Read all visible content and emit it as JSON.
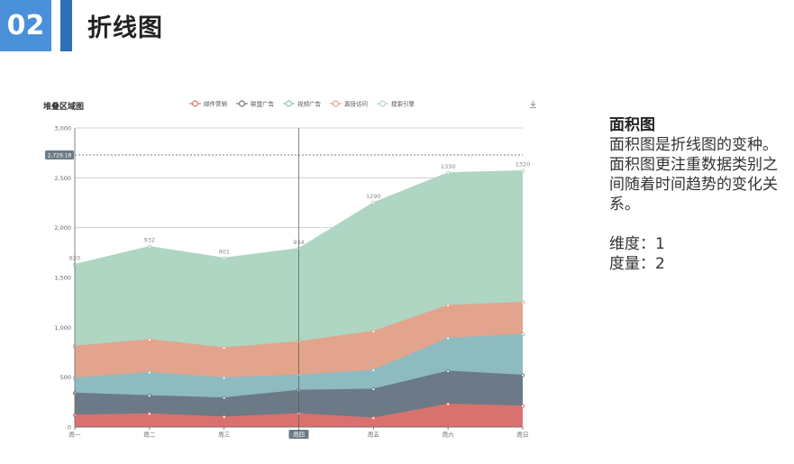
{
  "slide": {
    "number": "02",
    "title": "折线图"
  },
  "side_panel": {
    "heading": "面积图",
    "body": "面积图是折线图的变种。面积图更注重数据类别之间随着时间趋势的变化关系。",
    "dimension": "维度：1",
    "measure": "度量：2"
  },
  "chart_data": {
    "type": "area",
    "stacked": true,
    "title": "堆叠区域图",
    "categories": [
      "周一",
      "周二",
      "周三",
      "周四",
      "周五",
      "周六",
      "周日"
    ],
    "series": [
      {
        "name": "邮件营销",
        "color": "#d9726f",
        "values": [
          120,
          132,
          101,
          134,
          90,
          230,
          210
        ]
      },
      {
        "name": "联盟广告",
        "color": "#6b7a86",
        "values": [
          220,
          182,
          191,
          234,
          290,
          330,
          310
        ]
      },
      {
        "name": "视频广告",
        "color": "#8ebbc0",
        "values": [
          150,
          232,
          201,
          154,
          190,
          330,
          410
        ]
      },
      {
        "name": "直接访问",
        "color": "#e2a48c",
        "values": [
          320,
          332,
          301,
          334,
          390,
          330,
          320
        ]
      },
      {
        "name": "搜索引擎",
        "color": "#aed6c3",
        "values": [
          820,
          932,
          901,
          934,
          1290,
          1330,
          1320
        ]
      }
    ],
    "top_labels": [
      "820",
      "932",
      "901",
      "934",
      "1290",
      "1330",
      "1320"
    ],
    "ylim": [
      0,
      3000
    ],
    "yticks": [
      "0",
      "500",
      "1,000",
      "1,500",
      "2,000",
      "2,500",
      "3,000"
    ],
    "grid": true,
    "legend_position": "top",
    "tooltip": {
      "y_value": "2,729.18",
      "category": "周四"
    },
    "toolbox_icon": "download-icon"
  }
}
